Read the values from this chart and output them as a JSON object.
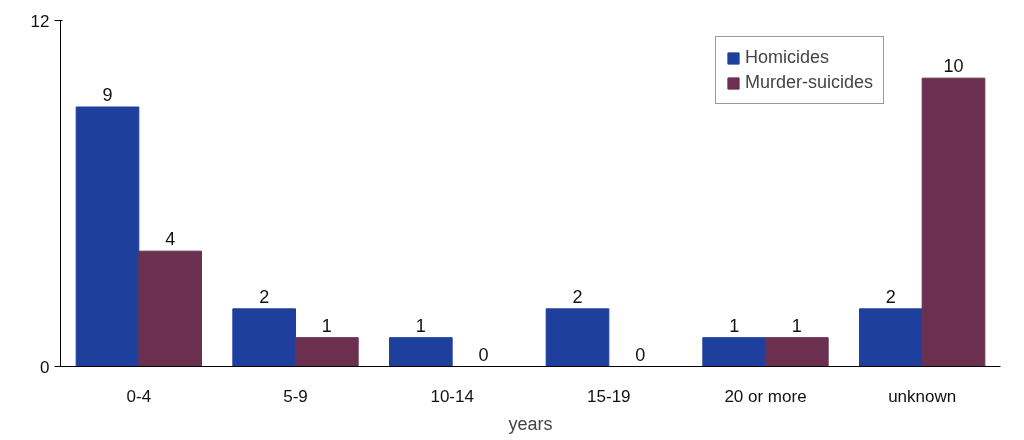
{
  "chart_data": {
    "type": "bar",
    "xlabel": "years",
    "categories": [
      "0-4",
      "5-9",
      "10-14",
      "15-19",
      "20 or more",
      "unknown"
    ],
    "series": [
      {
        "name": "Homicides",
        "color": "#1f3f9c",
        "values": [
          9,
          2,
          1,
          2,
          1,
          2
        ]
      },
      {
        "name": "Murder-suicides",
        "color": "#6b3050",
        "values": [
          4,
          1,
          0,
          0,
          1,
          10
        ]
      }
    ],
    "ylim": [
      0,
      12
    ],
    "yticks": [
      0,
      12
    ],
    "data_labels": true,
    "legend": "top right",
    "grid": false
  }
}
